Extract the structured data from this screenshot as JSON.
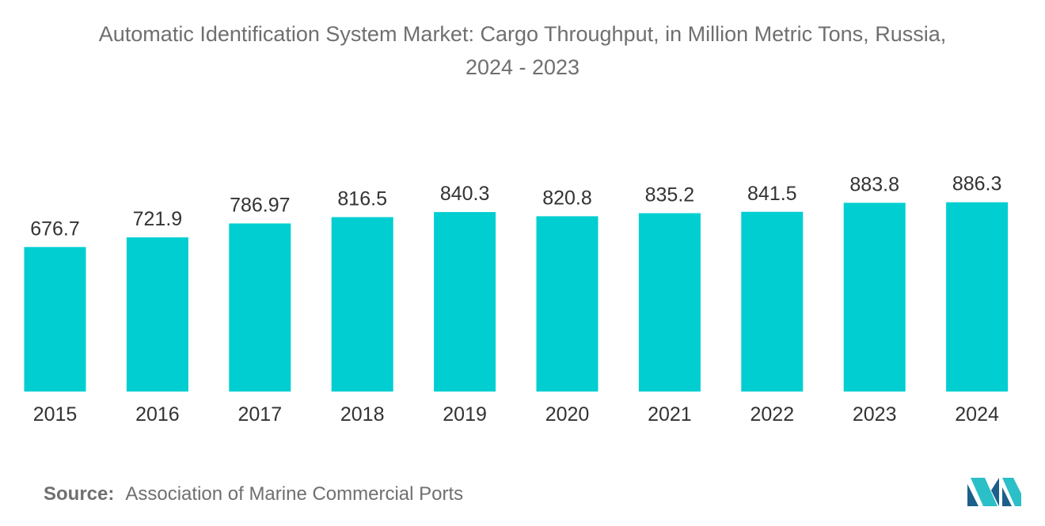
{
  "title": {
    "line1": "Automatic Identification System Market: Cargo Throughput, in Million Metric Tons, Russia,",
    "line2": "2024 - 2023"
  },
  "footer": {
    "source_label": "Source:",
    "source_text": "Association of Marine Commercial Ports"
  },
  "colors": {
    "bar": "#00CED1",
    "logo_dark": "#1c5f8a",
    "logo_teal": "#2bbfc7"
  },
  "chart_data": {
    "type": "bar",
    "title": "Automatic Identification System Market: Cargo Throughput, in Million Metric Tons, Russia, 2024 - 2023",
    "xlabel": "",
    "ylabel": "",
    "grid": false,
    "legend": "none",
    "ylim": [
      0,
      1000
    ],
    "categories": [
      "2015",
      "2016",
      "2017",
      "2018",
      "2019",
      "2020",
      "2021",
      "2022",
      "2023",
      "2024"
    ],
    "values": [
      676.7,
      721.9,
      786.97,
      816.5,
      840.3,
      820.8,
      835.2,
      841.5,
      883.8,
      886.3
    ],
    "value_labels": [
      "676.7",
      "721.9",
      "786.97",
      "816.5",
      "840.3",
      "820.8",
      "835.2",
      "841.5",
      "883.8",
      "886.3"
    ]
  }
}
